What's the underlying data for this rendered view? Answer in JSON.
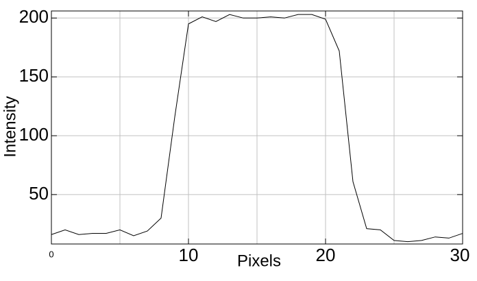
{
  "chart_data": {
    "type": "line",
    "x_label": "Pixels",
    "y_label": "Intensity",
    "x": [
      0,
      1,
      2,
      3,
      4,
      5,
      6,
      7,
      8,
      9,
      10,
      11,
      12,
      13,
      14,
      15,
      16,
      17,
      18,
      19,
      20,
      21,
      22,
      23,
      24,
      25,
      26,
      27,
      28,
      29,
      30
    ],
    "series": [
      {
        "color": "#000000",
        "values": [
          16,
          20,
          16,
          17,
          17,
          20,
          15,
          19,
          30,
          116,
          195,
          201,
          197,
          203,
          200,
          200,
          201,
          200,
          203,
          203,
          199,
          172,
          61,
          21,
          20,
          11,
          10,
          11,
          14,
          13,
          17
        ]
      }
    ],
    "xlim": [
      0,
      30
    ],
    "ylim": [
      8,
      206
    ],
    "xticks": [
      0,
      10,
      20,
      30
    ],
    "yticks": [
      50,
      100,
      150,
      200
    ],
    "xgrid": [
      5,
      10,
      15,
      20,
      25
    ],
    "ygrid": [
      50,
      100,
      150,
      200
    ],
    "grid": true
  }
}
